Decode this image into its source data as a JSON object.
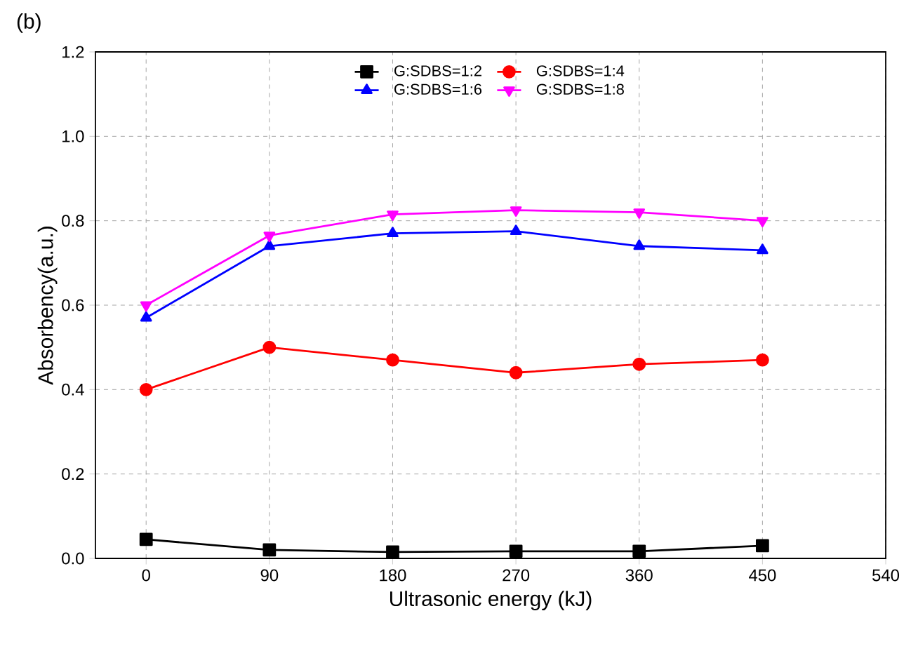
{
  "chart_data": {
    "type": "line",
    "xlabel": "Ultrasonic energy (kJ)",
    "ylabel": "Absorbency(a.u.)",
    "annotations": [
      "(b)"
    ],
    "x": [
      0,
      90,
      180,
      270,
      360,
      450
    ],
    "series": [
      {
        "name": "G:SDBS=1:2",
        "color": "#000000",
        "marker": "square",
        "values": [
          0.045,
          0.02,
          0.015,
          0.017,
          0.017,
          0.03
        ]
      },
      {
        "name": "G:SDBS=1:4",
        "color": "#ff0000",
        "marker": "circle",
        "values": [
          0.4,
          0.5,
          0.47,
          0.44,
          0.46,
          0.47
        ]
      },
      {
        "name": "G:SDBS=1:6",
        "color": "#0000ff",
        "marker": "triangle",
        "values": [
          0.57,
          0.74,
          0.77,
          0.775,
          0.74,
          0.73
        ]
      },
      {
        "name": "G:SDBS=1:8",
        "color": "#ff00ff",
        "marker": "triangle down",
        "values": [
          0.6,
          0.765,
          0.815,
          0.825,
          0.82,
          0.8
        ]
      }
    ],
    "xlim": [
      -37,
      540
    ],
    "xticks": [
      0,
      90,
      180,
      270,
      360,
      450,
      540
    ],
    "ylim": [
      0,
      1.2
    ],
    "yticks": [
      {
        "value": 0,
        "label": "0.0"
      },
      0.2,
      0.4,
      0.6,
      0.8,
      {
        "value": 1,
        "label": "1.0"
      },
      1.2
    ],
    "grid": true,
    "legend": "top",
    "line_style": "solid"
  }
}
